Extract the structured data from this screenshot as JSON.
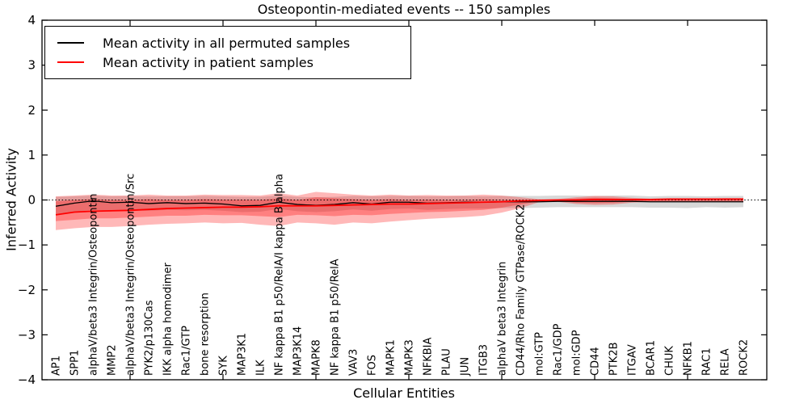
{
  "title": "Osteopontin-mediated events -- 150 samples",
  "axes": {
    "xlabel": "Cellular Entities",
    "ylabel": "Inferred Activity"
  },
  "legend": {
    "items": [
      {
        "label": "Mean activity in all permuted samples",
        "color": "#000000"
      },
      {
        "label": "Mean activity in patient samples",
        "color": "#ff0000"
      }
    ]
  },
  "chart_data": {
    "type": "line",
    "title": "Osteopontin-mediated events -- 150 samples",
    "xlabel": "Cellular Entities",
    "ylabel": "Inferred Activity",
    "ylim": [
      -4,
      4
    ],
    "yticks": [
      -4,
      -3,
      -2,
      -1,
      0,
      1,
      2,
      3,
      4
    ],
    "xtick_indices": [
      4,
      9,
      14,
      19,
      24,
      29,
      34
    ],
    "grid": false,
    "legend_position": "upper left",
    "zero_line": {
      "y": 0,
      "style": "dotted",
      "color": "#000000"
    },
    "categories": [
      "AP1",
      "SPP1",
      "alphaV/beta3 Integrin/Osteopontin",
      "MMP2",
      "alphaV/beta3 Integrin/Osteopontin/Src",
      "PYK2/p130Cas",
      "IKK alpha homodimer",
      "Rac1/GTP",
      "bone resorption",
      "SYK",
      "MAP3K1",
      "ILK",
      "NF kappa B1 p50/RelA/I kappa B alpha",
      "MAP3K14",
      "MAPK8",
      "NF kappa B1 p50/RelA",
      "VAV3",
      "FOS",
      "MAPK1",
      "MAPK3",
      "NFKBIA",
      "PLAU",
      "JUN",
      "ITGB3",
      "alphaV beta3 Integrin",
      "CD44/Rho Family GTPase/ROCK2",
      "mol:GTP",
      "Rac1/GDP",
      "mol:GDP",
      "CD44",
      "PTK2B",
      "ITGAV",
      "BCAR1",
      "CHUK",
      "NFKB1",
      "RAC1",
      "RELA",
      "ROCK2"
    ],
    "series": [
      {
        "name": "Mean activity in all permuted samples",
        "color": "#000000",
        "width": 1.3,
        "values": [
          -0.14,
          -0.07,
          -0.02,
          -0.06,
          -0.05,
          -0.08,
          -0.06,
          -0.08,
          -0.07,
          -0.09,
          -0.13,
          -0.12,
          -0.05,
          -0.1,
          -0.12,
          -0.1,
          -0.06,
          -0.09,
          -0.05,
          -0.05,
          -0.07,
          -0.06,
          -0.05,
          -0.05,
          -0.04,
          -0.04,
          -0.04,
          -0.03,
          -0.03,
          -0.03,
          -0.03,
          -0.03,
          -0.04,
          -0.04,
          -0.04,
          -0.04,
          -0.04,
          -0.04
        ]
      },
      {
        "name": "Mean activity in patient samples",
        "color": "#ff0000",
        "width": 1.8,
        "values": [
          -0.33,
          -0.27,
          -0.25,
          -0.24,
          -0.23,
          -0.21,
          -0.19,
          -0.18,
          -0.17,
          -0.16,
          -0.16,
          -0.15,
          -0.13,
          -0.13,
          -0.13,
          -0.12,
          -0.11,
          -0.1,
          -0.09,
          -0.09,
          -0.08,
          -0.07,
          -0.06,
          -0.05,
          -0.04,
          -0.02,
          -0.01,
          0.0,
          0.0,
          0.01,
          0.01,
          0.01,
          0.01,
          0.02,
          0.02,
          0.02,
          0.02,
          0.02
        ]
      }
    ],
    "bands": [
      {
        "name": "permuted-samples-range-band",
        "color": "#999999",
        "opacity": 0.38,
        "top": [
          0.07,
          0.08,
          0.1,
          0.08,
          0.09,
          0.08,
          0.08,
          0.08,
          0.09,
          0.08,
          0.07,
          0.07,
          0.1,
          0.07,
          0.06,
          0.07,
          0.09,
          0.08,
          0.09,
          0.09,
          0.08,
          0.08,
          0.09,
          0.08,
          0.09,
          0.09,
          0.09,
          0.1,
          0.1,
          0.09,
          0.1,
          0.1,
          0.08,
          0.09,
          0.09,
          0.08,
          0.09,
          0.09
        ],
        "bottom": [
          -0.33,
          -0.27,
          -0.22,
          -0.25,
          -0.23,
          -0.24,
          -0.22,
          -0.23,
          -0.22,
          -0.24,
          -0.27,
          -0.26,
          -0.2,
          -0.25,
          -0.27,
          -0.25,
          -0.21,
          -0.24,
          -0.2,
          -0.19,
          -0.22,
          -0.2,
          -0.19,
          -0.19,
          -0.18,
          -0.18,
          -0.17,
          -0.16,
          -0.16,
          -0.16,
          -0.16,
          -0.16,
          -0.17,
          -0.17,
          -0.18,
          -0.16,
          -0.17,
          -0.16
        ]
      },
      {
        "name": "patient-samples-outer-band",
        "color": "#ff0000",
        "opacity": 0.28,
        "top": [
          0.08,
          0.1,
          0.12,
          0.1,
          0.1,
          0.12,
          0.1,
          0.1,
          0.12,
          0.11,
          0.11,
          0.1,
          0.15,
          0.1,
          0.18,
          0.15,
          0.12,
          0.1,
          0.12,
          0.1,
          0.11,
          0.1,
          0.1,
          0.12,
          0.1,
          0.06,
          0.02,
          0.02,
          0.06,
          0.09,
          0.08,
          0.05,
          0.03,
          0.03,
          0.03,
          0.03,
          0.04,
          0.04
        ],
        "bottom": [
          -0.67,
          -0.63,
          -0.6,
          -0.6,
          -0.58,
          -0.55,
          -0.53,
          -0.52,
          -0.5,
          -0.52,
          -0.51,
          -0.55,
          -0.58,
          -0.5,
          -0.52,
          -0.55,
          -0.5,
          -0.52,
          -0.48,
          -0.45,
          -0.42,
          -0.4,
          -0.38,
          -0.35,
          -0.28,
          -0.18,
          -0.05,
          -0.04,
          -0.09,
          -0.11,
          -0.1,
          -0.06,
          -0.04,
          -0.04,
          -0.04,
          -0.04,
          -0.04,
          -0.04
        ]
      },
      {
        "name": "patient-samples-inner-band",
        "color": "#ff0000",
        "opacity": 0.3,
        "top": [
          -0.03,
          0.0,
          0.02,
          0.0,
          0.0,
          0.02,
          0.0,
          0.0,
          0.02,
          0.01,
          0.01,
          0.0,
          0.04,
          0.0,
          0.06,
          0.04,
          0.02,
          0.0,
          0.02,
          0.0,
          0.01,
          0.0,
          0.0,
          0.02,
          0.0,
          0.0,
          0.0,
          0.01,
          0.03,
          0.05,
          0.04,
          0.02,
          0.02,
          0.02,
          0.02,
          0.02,
          0.02,
          0.02
        ],
        "bottom": [
          -0.47,
          -0.44,
          -0.41,
          -0.41,
          -0.39,
          -0.37,
          -0.35,
          -0.35,
          -0.33,
          -0.34,
          -0.34,
          -0.36,
          -0.38,
          -0.33,
          -0.34,
          -0.36,
          -0.33,
          -0.34,
          -0.31,
          -0.29,
          -0.27,
          -0.26,
          -0.24,
          -0.22,
          -0.17,
          -0.1,
          -0.03,
          -0.02,
          -0.06,
          -0.07,
          -0.06,
          -0.04,
          -0.03,
          -0.03,
          -0.03,
          -0.03,
          -0.03,
          -0.03
        ]
      }
    ]
  }
}
